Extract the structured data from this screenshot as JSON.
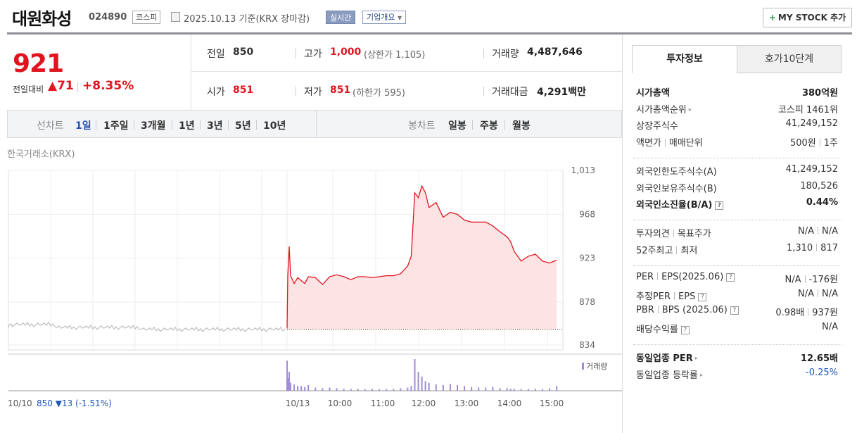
{
  "header": {
    "name": "대원화성",
    "code": "024890",
    "market": "코스피",
    "date": "2025.10.13 기준(KRX 장마감)",
    "realtime": "실시간",
    "overview": "기업개요",
    "mystock": "MY STOCK 추가",
    "mystock_plus": "+"
  },
  "price": {
    "current": "921",
    "change_label": "전일대비",
    "change": "▲71",
    "change_pct": "+8.35%"
  },
  "stats": {
    "prev_label": "전일",
    "prev": "850",
    "high_label": "고가",
    "high": "1,000",
    "upper_limit": "(상한가 1,105)",
    "volume_label": "거래량",
    "volume": "4,487,646",
    "open_label": "시가",
    "open": "851",
    "low_label": "저가",
    "low": "851",
    "lower_limit": "(하한가 595)",
    "amount_label": "거래대금",
    "amount": "4,291",
    "amount_unit": "백만"
  },
  "period_bar": {
    "line_title": "선차트",
    "line_periods": [
      "1일",
      "1주일",
      "3개월",
      "1년",
      "3년",
      "5년",
      "10년"
    ],
    "active": "1일",
    "candle_title": "봉차트",
    "candle_periods": [
      "일봉",
      "주봉",
      "월봉"
    ]
  },
  "chart_source": "한국거래소(KRX)",
  "chart_data": {
    "type": "line",
    "title": "",
    "y_ticks": [
      "1,013",
      "968",
      "923",
      "878",
      "834"
    ],
    "ylim": [
      834,
      1013
    ],
    "x_ticks": [
      "10/13",
      "10:00",
      "11:00",
      "12:00",
      "13:00",
      "14:00",
      "15:00"
    ],
    "prev_day_label": "10/10",
    "prev_day_close": "850",
    "prev_day_change": "▼13 (-1.51%)",
    "volume_legend": "거래량",
    "prev_close_line": 850,
    "series": [
      {
        "x": [
          "09:00",
          "09:01",
          "09:03",
          "09:05",
          "09:10",
          "09:15",
          "09:20",
          "09:25",
          "09:30",
          "09:40",
          "09:50",
          "10:00",
          "10:10",
          "10:20",
          "10:30",
          "10:40",
          "10:50",
          "11:00",
          "11:10",
          "11:20",
          "11:30",
          "11:40",
          "11:50",
          "11:55",
          "12:00",
          "12:05",
          "12:10",
          "12:15",
          "12:20",
          "12:30",
          "12:40",
          "12:50",
          "13:00",
          "13:10",
          "13:20",
          "13:30",
          "13:40",
          "13:50",
          "14:00",
          "14:10",
          "14:15",
          "14:20",
          "14:30",
          "14:40",
          "14:50",
          "15:00",
          "15:10",
          "15:20"
        ],
        "values": [
          851,
          905,
          935,
          905,
          897,
          903,
          900,
          897,
          904,
          903,
          896,
          904,
          906,
          904,
          901,
          904,
          904,
          903,
          904,
          905,
          905,
          907,
          915,
          925,
          990,
          985,
          997,
          990,
          975,
          980,
          965,
          970,
          968,
          962,
          960,
          960,
          960,
          956,
          950,
          945,
          940,
          930,
          920,
          925,
          927,
          920,
          918,
          921
        ]
      }
    ],
    "volume": [
      95,
      40,
      60,
      25,
      20,
      15,
      15,
      12,
      18,
      10,
      8,
      10,
      8,
      6,
      6,
      6,
      5,
      6,
      5,
      5,
      6,
      8,
      10,
      15,
      100,
      60,
      45,
      30,
      25,
      20,
      18,
      22,
      18,
      15,
      12,
      10,
      10,
      12,
      8,
      8,
      6,
      6,
      5,
      5,
      6,
      5,
      8,
      15
    ]
  },
  "invest": {
    "tab_active": "투자정보",
    "tab_other": "호가10단계",
    "group1": [
      {
        "label": "시가총액",
        "value": "380억원",
        "bold": true
      },
      {
        "label": "시가총액순위",
        "value": "코스피 1461위",
        "arrow": true
      },
      {
        "label": "상장주식수",
        "value": "41,249,152"
      },
      {
        "label": "액면가",
        "label2": "매매단위",
        "value": "500원",
        "value2": "1주"
      }
    ],
    "group2": [
      {
        "label": "외국인한도주식수(A)",
        "value": "41,249,152"
      },
      {
        "label": "외국인보유주식수(B)",
        "value": "180,526"
      },
      {
        "label": "외국인소진율(B/A)",
        "value": "0.44%",
        "bold": true,
        "help": true
      }
    ],
    "group3": [
      {
        "label": "투자의견",
        "label2": "목표주가",
        "value": "N/A",
        "value2": "N/A"
      },
      {
        "label": "52주최고",
        "label2": "최저",
        "value": "1,310",
        "value2": "817"
      }
    ],
    "group4": [
      {
        "label": "PER",
        "label2": "EPS(2025.06)",
        "value": "N/A",
        "value2": "-176원",
        "help": true
      },
      {
        "label": "추정PER",
        "label2": "EPS",
        "value": "N/A",
        "value2": "N/A",
        "help": true
      },
      {
        "label": "PBR",
        "label2": "BPS (2025.06)",
        "value": "0.98배",
        "value2": "937원",
        "help": true
      },
      {
        "label": "배당수익률",
        "value": "N/A",
        "help": true
      }
    ],
    "group5": [
      {
        "label": "동일업종 PER",
        "value": "12.65배",
        "bold": true,
        "arrow": true
      },
      {
        "label": "동일업종 등락률",
        "value": "-0.25%",
        "arrow": true,
        "blue": true
      }
    ],
    "help_mark": "?",
    "arrow_mark": "▸"
  },
  "colors": {
    "up": "#e0141e",
    "down": "#1f55b7",
    "area_fill": "#fde4e4",
    "volume": "#a28bd4"
  }
}
